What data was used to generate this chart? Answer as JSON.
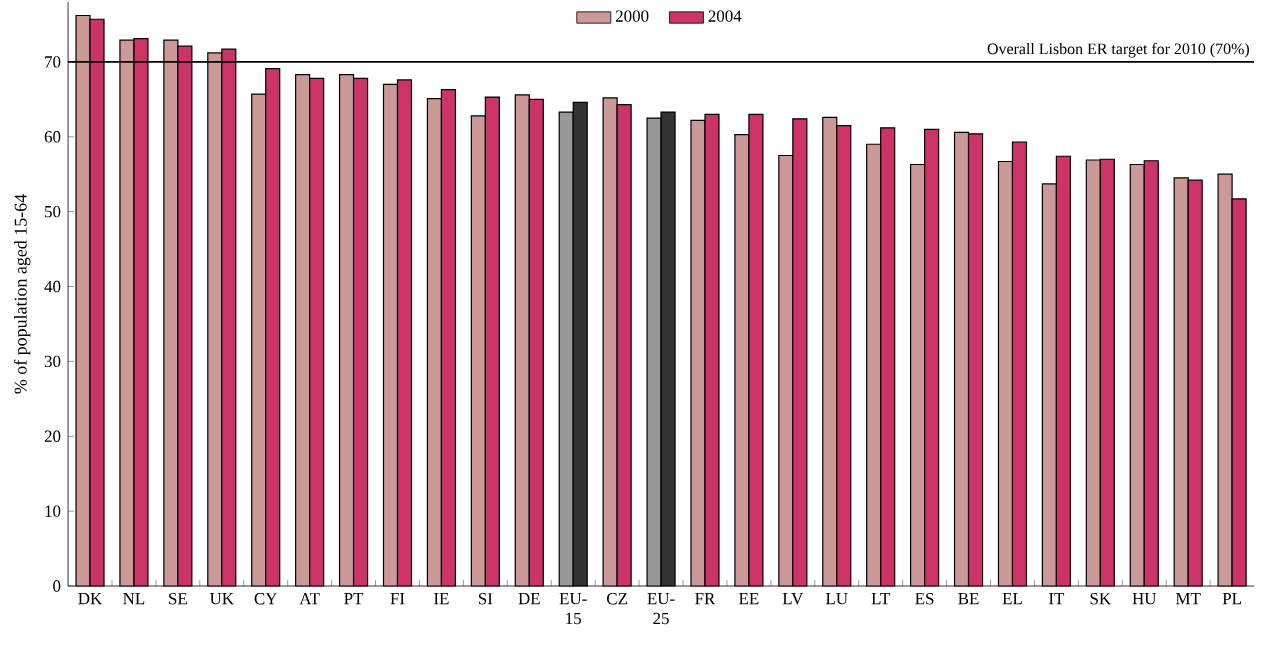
{
  "chart_data": {
    "type": "bar",
    "ylabel": "% of population aged 15-64",
    "categories": [
      "DK",
      "NL",
      "SE",
      "UK",
      "CY",
      "AT",
      "PT",
      "FI",
      "IE",
      "SI",
      "DE",
      "EU-15",
      "CZ",
      "EU-25",
      "FR",
      "EE",
      "LV",
      "LU",
      "LT",
      "ES",
      "BE",
      "EL",
      "IT",
      "SK",
      "HU",
      "MT",
      "PL"
    ],
    "series": [
      {
        "name": "2000",
        "color": "#cc9999",
        "colors": [
          "#cc9999",
          "#cc9999",
          "#cc9999",
          "#cc9999",
          "#cc9999",
          "#cc9999",
          "#cc9999",
          "#cc9999",
          "#cc9999",
          "#cc9999",
          "#cc9999",
          "#999999",
          "#cc9999",
          "#999999",
          "#cc9999",
          "#cc9999",
          "#cc9999",
          "#cc9999",
          "#cc9999",
          "#cc9999",
          "#cc9999",
          "#cc9999",
          "#cc9999",
          "#cc9999",
          "#cc9999",
          "#cc9999",
          "#cc9999"
        ],
        "values": [
          76.2,
          72.9,
          72.9,
          71.2,
          65.7,
          68.3,
          68.3,
          67.0,
          65.1,
          62.8,
          65.6,
          63.3,
          65.2,
          62.5,
          62.2,
          60.3,
          57.5,
          62.6,
          59.0,
          56.3,
          60.6,
          56.7,
          53.7,
          56.9,
          56.3,
          54.5,
          55.0
        ]
      },
      {
        "name": "2004",
        "color": "#cc3366",
        "colors": [
          "#cc3366",
          "#cc3366",
          "#cc3366",
          "#cc3366",
          "#cc3366",
          "#cc3366",
          "#cc3366",
          "#cc3366",
          "#cc3366",
          "#cc3366",
          "#cc3366",
          "#333333",
          "#cc3366",
          "#333333",
          "#cc3366",
          "#cc3366",
          "#cc3366",
          "#cc3366",
          "#cc3366",
          "#cc3366",
          "#cc3366",
          "#cc3366",
          "#cc3366",
          "#cc3366",
          "#cc3366",
          "#cc3366",
          "#cc3366"
        ],
        "values": [
          75.7,
          73.1,
          72.1,
          71.7,
          69.1,
          67.8,
          67.8,
          67.6,
          66.3,
          65.3,
          65.0,
          64.6,
          64.3,
          63.3,
          63.0,
          63.0,
          62.4,
          61.5,
          61.2,
          61.0,
          60.4,
          59.3,
          57.4,
          57.0,
          56.8,
          54.2,
          51.7
        ]
      }
    ],
    "ylim": [
      0,
      78
    ],
    "yticks": [
      0,
      10,
      20,
      30,
      40,
      50,
      60,
      70
    ],
    "ref_lines": [
      {
        "axis": "y",
        "value": 70,
        "label": "Overall Lisbon ER target for 2010 (70%)",
        "color": "#000000"
      }
    ],
    "legend": "top",
    "grid": false
  }
}
